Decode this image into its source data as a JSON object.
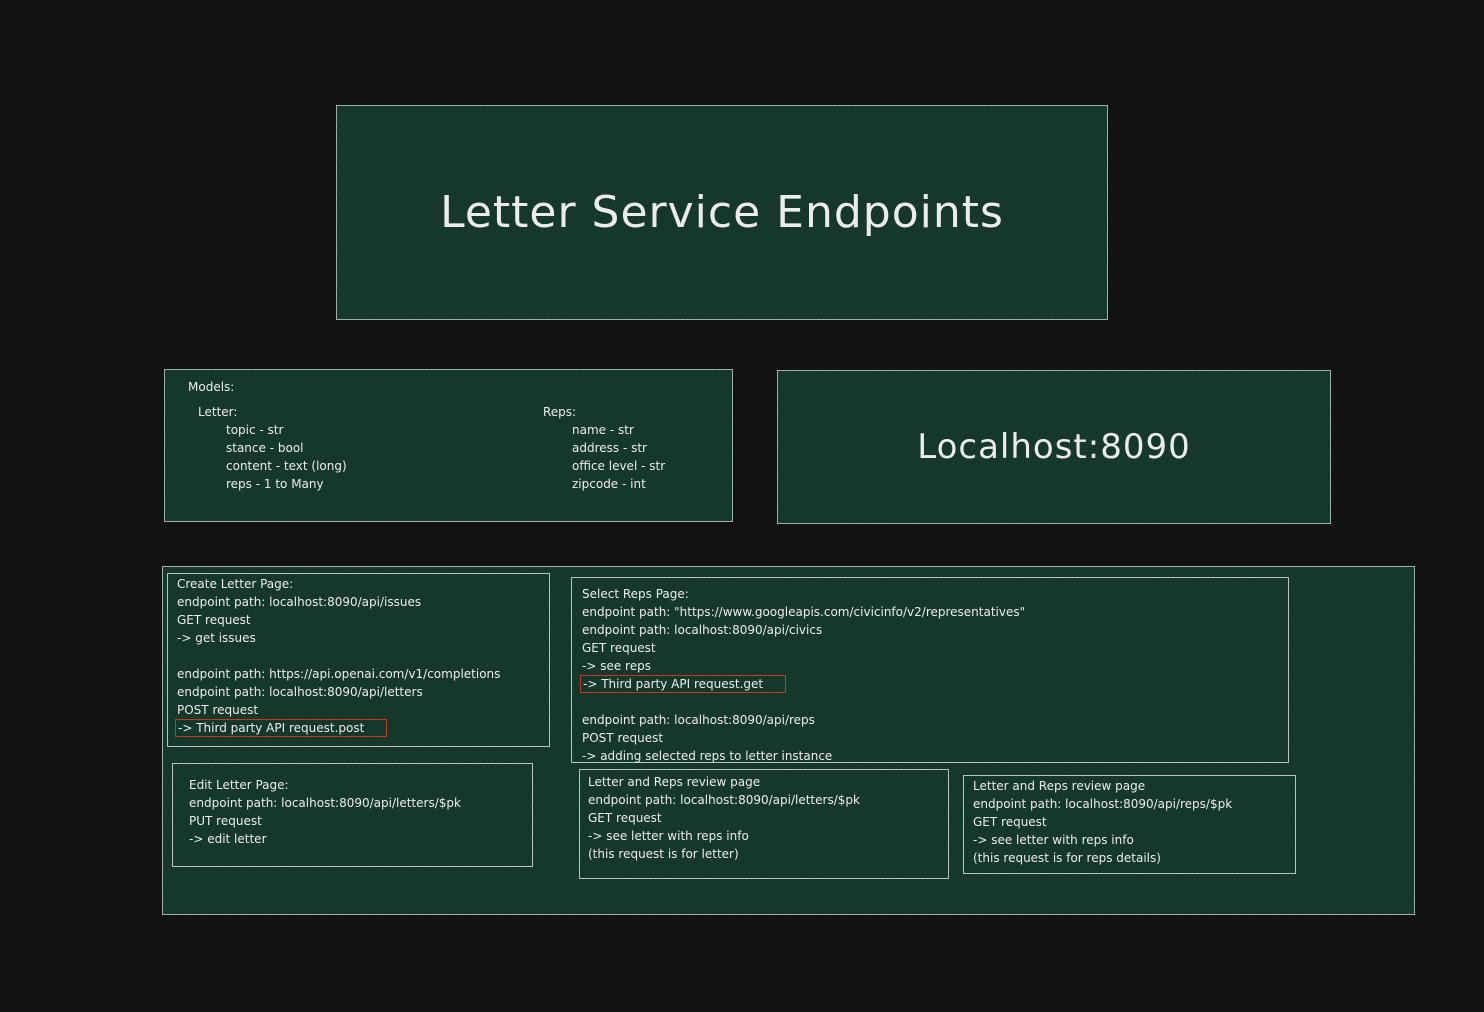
{
  "title": "Letter Service Endpoints",
  "host": "Localhost:8090",
  "models": {
    "heading": "Models:",
    "letter": {
      "heading": "Letter:",
      "fields": [
        "topic - str",
        "stance - bool",
        "content - text (long)",
        "reps - 1 to Many"
      ]
    },
    "reps": {
      "heading": "Reps:",
      "fields": [
        "name - str",
        "address - str",
        "office level - str",
        "zipcode - int"
      ]
    }
  },
  "create_letter_page": {
    "sections": [
      [
        "Create Letter Page:",
        "endpoint path: localhost:8090/api/issues",
        "GET request",
        "-> get issues"
      ],
      [
        "endpoint path: https://api.openai.com/v1/completions",
        "endpoint path: localhost:8090/api/letters",
        "POST request",
        "-> Third party API request.post"
      ]
    ]
  },
  "select_reps_page": {
    "sections": [
      [
        "Select Reps Page:",
        "endpoint path: \"https://www.googleapis.com/civicinfo/v2/representatives\"",
        "endpoint path: localhost:8090/api/civics",
        "GET request",
        "-> see reps",
        "-> Third party API request.get"
      ],
      [
        "endpoint path: localhost:8090/api/reps",
        "POST request",
        "->  adding selected reps to letter instance"
      ]
    ]
  },
  "edit_letter_page": {
    "sections": [
      [
        "Edit Letter Page:",
        "endpoint path: localhost:8090/api/letters/$pk",
        "PUT request",
        "-> edit letter"
      ]
    ]
  },
  "letter_review_page": {
    "sections": [
      [
        "Letter and Reps review page",
        "endpoint path: localhost:8090/api/letters/$pk",
        "GET request",
        "-> see letter with reps info",
        "(this request is for letter)"
      ]
    ]
  },
  "reps_review_page": {
    "sections": [
      [
        "Letter and Reps review page",
        "endpoint path: localhost:8090/api/reps/$pk",
        "GET request",
        "-> see letter with reps info",
        "(this request is for reps details)"
      ]
    ]
  }
}
